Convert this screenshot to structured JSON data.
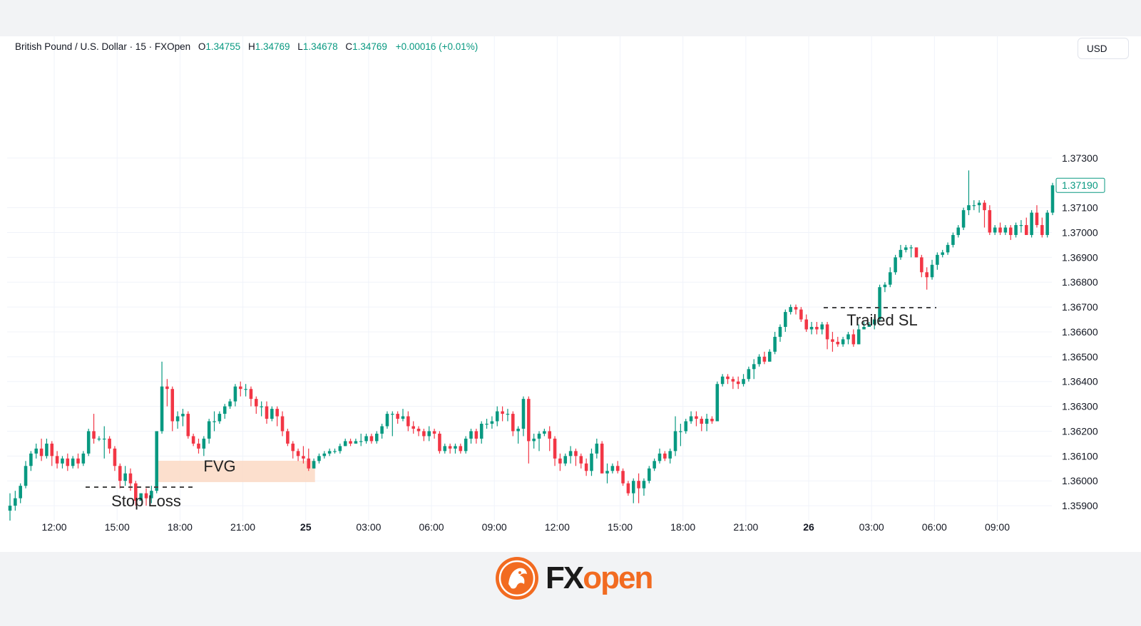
{
  "legend": {
    "symbol": "British Pound / U.S. Dollar · 15 · FXOpen",
    "open_label": "O",
    "open": "1.34755",
    "high_label": "H",
    "high": "1.34769",
    "low_label": "L",
    "low": "1.34678",
    "close_label": "C",
    "close": "1.34769",
    "change": "+0.00016 (+0.01%)"
  },
  "currency_button": "USD",
  "logo": {
    "fx": "FX",
    "open": "open"
  },
  "colors": {
    "up": "#089981",
    "down": "#f23645",
    "fvg": "#fcd9c4",
    "accent": "#f26b21"
  },
  "chart_data": {
    "type": "candlestick",
    "title": "British Pound / U.S. Dollar · 15 · FXOpen",
    "ylim": [
      1.3584,
      1.3779
    ],
    "y_ticks": [
      "1.37300",
      "1.37100",
      "1.37000",
      "1.36900",
      "1.36800",
      "1.36700",
      "1.36600",
      "1.36500",
      "1.36400",
      "1.36300",
      "1.36200",
      "1.36100",
      "1.36000",
      "1.35900"
    ],
    "x_ticks": [
      {
        "label": "12:00",
        "bold": false
      },
      {
        "label": "15:00",
        "bold": false
      },
      {
        "label": "18:00",
        "bold": false
      },
      {
        "label": "21:00",
        "bold": false
      },
      {
        "label": "25",
        "bold": true
      },
      {
        "label": "03:00",
        "bold": false
      },
      {
        "label": "06:00",
        "bold": false
      },
      {
        "label": "09:00",
        "bold": false
      },
      {
        "label": "12:00",
        "bold": false
      },
      {
        "label": "15:00",
        "bold": false
      },
      {
        "label": "18:00",
        "bold": false
      },
      {
        "label": "21:00",
        "bold": false
      },
      {
        "label": "26",
        "bold": true
      },
      {
        "label": "03:00",
        "bold": false
      },
      {
        "label": "06:00",
        "bold": false
      },
      {
        "label": "09:00",
        "bold": false
      }
    ],
    "last_price": "1.37190",
    "candles": [
      [
        1.3588,
        1.359,
        1.3584,
        1.3595
      ],
      [
        1.359,
        1.3593,
        1.3588,
        1.3596
      ],
      [
        1.3593,
        1.3598,
        1.3591,
        1.3599
      ],
      [
        1.3598,
        1.3606,
        1.3597,
        1.3608
      ],
      [
        1.3606,
        1.3611,
        1.3604,
        1.3612
      ],
      [
        1.3611,
        1.3613,
        1.3609,
        1.3615
      ],
      [
        1.3613,
        1.361,
        1.3608,
        1.3617
      ],
      [
        1.361,
        1.3615,
        1.3609,
        1.3617
      ],
      [
        1.3615,
        1.361,
        1.3606,
        1.3616
      ],
      [
        1.361,
        1.3607,
        1.3605,
        1.3612
      ],
      [
        1.3607,
        1.3609,
        1.3605,
        1.361
      ],
      [
        1.3609,
        1.3606,
        1.3604,
        1.3611
      ],
      [
        1.3606,
        1.3609,
        1.3605,
        1.361
      ],
      [
        1.3609,
        1.3607,
        1.3605,
        1.3611
      ],
      [
        1.3607,
        1.3611,
        1.3606,
        1.3612
      ],
      [
        1.3611,
        1.362,
        1.361,
        1.3621
      ],
      [
        1.362,
        1.3617,
        1.3615,
        1.3627
      ],
      [
        1.3617,
        1.3617,
        1.3616,
        1.3618
      ],
      [
        1.3617,
        1.3617,
        1.3609,
        1.3622
      ],
      [
        1.3617,
        1.3613,
        1.3611,
        1.3618
      ],
      [
        1.3613,
        1.3606,
        1.3604,
        1.3614
      ],
      [
        1.3606,
        1.36,
        1.3597,
        1.3607
      ],
      [
        1.36,
        1.3603,
        1.3598,
        1.3606
      ],
      [
        1.3603,
        1.3599,
        1.3596,
        1.3605
      ],
      [
        1.3599,
        1.3592,
        1.359,
        1.36
      ],
      [
        1.3592,
        1.3595,
        1.3592,
        1.3595
      ],
      [
        1.3595,
        1.3593,
        1.359,
        1.3597
      ],
      [
        1.3593,
        1.3596,
        1.3591,
        1.3598
      ],
      [
        1.3596,
        1.362,
        1.3595,
        1.362
      ],
      [
        1.362,
        1.3638,
        1.3619,
        1.3648
      ],
      [
        1.3638,
        1.3637,
        1.363,
        1.3641
      ],
      [
        1.3637,
        1.3624,
        1.362,
        1.3638
      ],
      [
        1.3624,
        1.3626,
        1.3621,
        1.3628
      ],
      [
        1.3626,
        1.3627,
        1.3622,
        1.3629
      ],
      [
        1.3627,
        1.3618,
        1.3617,
        1.3628
      ],
      [
        1.3618,
        1.3615,
        1.3614,
        1.3619
      ],
      [
        1.3615,
        1.3613,
        1.3611,
        1.3617
      ],
      [
        1.3613,
        1.3617,
        1.361,
        1.3618
      ],
      [
        1.3617,
        1.3624,
        1.3615,
        1.3625
      ],
      [
        1.3624,
        1.3624,
        1.362,
        1.3628
      ],
      [
        1.3624,
        1.3627,
        1.3623,
        1.3628
      ],
      [
        1.3627,
        1.363,
        1.3625,
        1.3631
      ],
      [
        1.363,
        1.3632,
        1.3629,
        1.3633
      ],
      [
        1.3632,
        1.3638,
        1.363,
        1.3639
      ],
      [
        1.3638,
        1.3637,
        1.3634,
        1.364
      ],
      [
        1.3637,
        1.3637,
        1.3634,
        1.3639
      ],
      [
        1.3637,
        1.3633,
        1.363,
        1.3638
      ],
      [
        1.3633,
        1.363,
        1.3627,
        1.3634
      ],
      [
        1.363,
        1.363,
        1.3626,
        1.3632
      ],
      [
        1.363,
        1.3625,
        1.3623,
        1.3632
      ],
      [
        1.3625,
        1.3629,
        1.3624,
        1.363
      ],
      [
        1.3629,
        1.3626,
        1.3622,
        1.363
      ],
      [
        1.3626,
        1.362,
        1.3618,
        1.3628
      ],
      [
        1.362,
        1.3615,
        1.3614,
        1.3621
      ],
      [
        1.3615,
        1.3612,
        1.3609,
        1.3616
      ],
      [
        1.3612,
        1.361,
        1.3608,
        1.3613
      ],
      [
        1.361,
        1.3609,
        1.3607,
        1.3614
      ],
      [
        1.3609,
        1.3605,
        1.3604,
        1.3613
      ],
      [
        1.3605,
        1.3608,
        1.3605,
        1.3609
      ],
      [
        1.3608,
        1.361,
        1.3607,
        1.3611
      ],
      [
        1.361,
        1.3611,
        1.3609,
        1.3612
      ],
      [
        1.3611,
        1.3612,
        1.361,
        1.3613
      ],
      [
        1.3612,
        1.3612,
        1.3611,
        1.3613
      ],
      [
        1.3612,
        1.3614,
        1.3611,
        1.3615
      ],
      [
        1.3614,
        1.3616,
        1.3614,
        1.3617
      ],
      [
        1.3616,
        1.3615,
        1.3614,
        1.3617
      ],
      [
        1.3615,
        1.3616,
        1.3615,
        1.3617
      ],
      [
        1.3616,
        1.3616,
        1.3614,
        1.3619
      ],
      [
        1.3616,
        1.3618,
        1.3615,
        1.3619
      ],
      [
        1.3618,
        1.3616,
        1.3615,
        1.3619
      ],
      [
        1.3616,
        1.3619,
        1.3615,
        1.362
      ],
      [
        1.3619,
        1.3622,
        1.3617,
        1.3623
      ],
      [
        1.3622,
        1.3627,
        1.3621,
        1.3628
      ],
      [
        1.3627,
        1.3627,
        1.3618,
        1.3628
      ],
      [
        1.3627,
        1.3625,
        1.3623,
        1.3628
      ],
      [
        1.3625,
        1.3626,
        1.3624,
        1.3629
      ],
      [
        1.3626,
        1.3622,
        1.362,
        1.3628
      ],
      [
        1.3622,
        1.3621,
        1.3619,
        1.3624
      ],
      [
        1.3621,
        1.362,
        1.3618,
        1.3622
      ],
      [
        1.362,
        1.3618,
        1.3616,
        1.3621
      ],
      [
        1.3618,
        1.362,
        1.3616,
        1.3622
      ],
      [
        1.362,
        1.3619,
        1.3617,
        1.3621
      ],
      [
        1.3619,
        1.3612,
        1.3611,
        1.362
      ],
      [
        1.3612,
        1.3614,
        1.3611,
        1.3615
      ],
      [
        1.3614,
        1.3613,
        1.3611,
        1.3615
      ],
      [
        1.3613,
        1.3614,
        1.3611,
        1.3615
      ],
      [
        1.3614,
        1.3612,
        1.3611,
        1.3615
      ],
      [
        1.3612,
        1.3617,
        1.3611,
        1.3618
      ],
      [
        1.3617,
        1.362,
        1.3615,
        1.3621
      ],
      [
        1.362,
        1.3617,
        1.3615,
        1.3621
      ],
      [
        1.3617,
        1.3623,
        1.3615,
        1.3624
      ],
      [
        1.3623,
        1.3623,
        1.3621,
        1.3625
      ],
      [
        1.3623,
        1.3624,
        1.3621,
        1.3626
      ],
      [
        1.3624,
        1.3628,
        1.3622,
        1.363
      ],
      [
        1.3628,
        1.3627,
        1.3624,
        1.363
      ],
      [
        1.3627,
        1.3627,
        1.3624,
        1.3629
      ],
      [
        1.3627,
        1.362,
        1.3618,
        1.3628
      ],
      [
        1.362,
        1.3621,
        1.3615,
        1.3622
      ],
      [
        1.3621,
        1.3633,
        1.3618,
        1.3634
      ],
      [
        1.3633,
        1.3616,
        1.3607,
        1.3634
      ],
      [
        1.3616,
        1.3617,
        1.3613,
        1.3619
      ],
      [
        1.3617,
        1.3619,
        1.3612,
        1.362
      ],
      [
        1.3619,
        1.362,
        1.3618,
        1.3621
      ],
      [
        1.362,
        1.3617,
        1.3612,
        1.3622
      ],
      [
        1.3617,
        1.3609,
        1.3606,
        1.3618
      ],
      [
        1.3609,
        1.3607,
        1.3604,
        1.3611
      ],
      [
        1.3607,
        1.361,
        1.3606,
        1.3611
      ],
      [
        1.361,
        1.3612,
        1.3607,
        1.3614
      ],
      [
        1.3612,
        1.361,
        1.3606,
        1.3613
      ],
      [
        1.361,
        1.3607,
        1.3605,
        1.3611
      ],
      [
        1.3607,
        1.3604,
        1.3602,
        1.3609
      ],
      [
        1.3604,
        1.3611,
        1.3602,
        1.3613
      ],
      [
        1.3611,
        1.3615,
        1.3609,
        1.3617
      ],
      [
        1.3615,
        1.3603,
        1.3603,
        1.3616
      ],
      [
        1.3603,
        1.3604,
        1.3599,
        1.3607
      ],
      [
        1.3604,
        1.3606,
        1.3603,
        1.3607
      ],
      [
        1.3606,
        1.3604,
        1.3603,
        1.3608
      ],
      [
        1.3604,
        1.3599,
        1.3598,
        1.3605
      ],
      [
        1.3599,
        1.3595,
        1.3594,
        1.36
      ],
      [
        1.3595,
        1.36,
        1.3591,
        1.3601
      ],
      [
        1.36,
        1.3597,
        1.3591,
        1.3603
      ],
      [
        1.3597,
        1.36,
        1.3594,
        1.3601
      ],
      [
        1.36,
        1.3605,
        1.3599,
        1.3606
      ],
      [
        1.3605,
        1.3608,
        1.3604,
        1.3609
      ],
      [
        1.3608,
        1.3611,
        1.3607,
        1.3613
      ],
      [
        1.3611,
        1.3609,
        1.3608,
        1.3612
      ],
      [
        1.3609,
        1.3612,
        1.3607,
        1.3613
      ],
      [
        1.3612,
        1.362,
        1.361,
        1.3626
      ],
      [
        1.362,
        1.362,
        1.3614,
        1.3623
      ],
      [
        1.362,
        1.3624,
        1.3619,
        1.3625
      ],
      [
        1.3624,
        1.3626,
        1.3623,
        1.3628
      ],
      [
        1.3626,
        1.3625,
        1.3622,
        1.3628
      ],
      [
        1.3625,
        1.3623,
        1.362,
        1.3626
      ],
      [
        1.3623,
        1.3625,
        1.362,
        1.3627
      ],
      [
        1.3625,
        1.3624,
        1.3623,
        1.3626
      ],
      [
        1.3624,
        1.3639,
        1.3624,
        1.364
      ],
      [
        1.3639,
        1.3642,
        1.3638,
        1.3643
      ],
      [
        1.3642,
        1.3641,
        1.3639,
        1.3643
      ],
      [
        1.3641,
        1.364,
        1.3637,
        1.3642
      ],
      [
        1.364,
        1.3639,
        1.3637,
        1.3642
      ],
      [
        1.3639,
        1.3641,
        1.3638,
        1.3643
      ],
      [
        1.3641,
        1.3645,
        1.364,
        1.3646
      ],
      [
        1.3645,
        1.3647,
        1.3641,
        1.3649
      ],
      [
        1.3647,
        1.365,
        1.3646,
        1.3651
      ],
      [
        1.365,
        1.3648,
        1.3647,
        1.3652
      ],
      [
        1.3648,
        1.3652,
        1.3648,
        1.3653
      ],
      [
        1.3652,
        1.3658,
        1.3651,
        1.366
      ],
      [
        1.3658,
        1.3662,
        1.3656,
        1.3663
      ],
      [
        1.3662,
        1.3668,
        1.366,
        1.3669
      ],
      [
        1.3668,
        1.367,
        1.3667,
        1.3671
      ],
      [
        1.367,
        1.3669,
        1.3667,
        1.3671
      ],
      [
        1.3669,
        1.3665,
        1.3664,
        1.367
      ],
      [
        1.3665,
        1.3661,
        1.366,
        1.3667
      ],
      [
        1.3661,
        1.3662,
        1.3659,
        1.3664
      ],
      [
        1.3662,
        1.3661,
        1.3659,
        1.3664
      ],
      [
        1.3661,
        1.3663,
        1.3659,
        1.3664
      ],
      [
        1.3663,
        1.3657,
        1.3653,
        1.3664
      ],
      [
        1.3657,
        1.3656,
        1.3652,
        1.366
      ],
      [
        1.3656,
        1.3655,
        1.3654,
        1.3658
      ],
      [
        1.3655,
        1.3657,
        1.3654,
        1.3658
      ],
      [
        1.3657,
        1.3659,
        1.3655,
        1.366
      ],
      [
        1.3659,
        1.3655,
        1.3654,
        1.3661
      ],
      [
        1.3655,
        1.3661,
        1.3655,
        1.3663
      ],
      [
        1.3661,
        1.3662,
        1.3661,
        1.3664
      ],
      [
        1.3662,
        1.3663,
        1.3662,
        1.3664
      ],
      [
        1.3663,
        1.3665,
        1.3661,
        1.3666
      ],
      [
        1.3665,
        1.3678,
        1.3664,
        1.3679
      ],
      [
        1.3678,
        1.3679,
        1.3676,
        1.368
      ],
      [
        1.3679,
        1.3684,
        1.3678,
        1.3686
      ],
      [
        1.3684,
        1.369,
        1.3683,
        1.3691
      ],
      [
        1.369,
        1.3693,
        1.3689,
        1.3695
      ],
      [
        1.3693,
        1.3694,
        1.3692,
        1.3695
      ],
      [
        1.3694,
        1.3694,
        1.369,
        1.3695
      ],
      [
        1.3694,
        1.369,
        1.369,
        1.3694
      ],
      [
        1.369,
        1.3684,
        1.3682,
        1.3691
      ],
      [
        1.3684,
        1.3682,
        1.3677,
        1.3686
      ],
      [
        1.3682,
        1.3687,
        1.3681,
        1.3689
      ],
      [
        1.3687,
        1.3691,
        1.3685,
        1.3692
      ],
      [
        1.3691,
        1.3692,
        1.369,
        1.3693
      ],
      [
        1.3692,
        1.3695,
        1.3691,
        1.3696
      ],
      [
        1.3695,
        1.3699,
        1.3694,
        1.37
      ],
      [
        1.3699,
        1.3702,
        1.3698,
        1.3703
      ],
      [
        1.3702,
        1.3709,
        1.3701,
        1.371
      ],
      [
        1.3709,
        1.3711,
        1.3707,
        1.3725
      ],
      [
        1.3711,
        1.3711,
        1.3709,
        1.3713
      ],
      [
        1.3711,
        1.3712,
        1.3708,
        1.3713
      ],
      [
        1.3712,
        1.3709,
        1.3702,
        1.3713
      ],
      [
        1.3709,
        1.37,
        1.3699,
        1.3711
      ],
      [
        1.37,
        1.3702,
        1.3699,
        1.3703
      ],
      [
        1.3702,
        1.37,
        1.3699,
        1.3704
      ],
      [
        1.37,
        1.3702,
        1.3699,
        1.3703
      ],
      [
        1.3702,
        1.3699,
        1.3697,
        1.3703
      ],
      [
        1.3699,
        1.3703,
        1.3698,
        1.3704
      ],
      [
        1.3703,
        1.3703,
        1.37,
        1.3705
      ],
      [
        1.3703,
        1.3699,
        1.3699,
        1.3706
      ],
      [
        1.3699,
        1.3708,
        1.3698,
        1.3709
      ],
      [
        1.3708,
        1.3703,
        1.3702,
        1.3711
      ],
      [
        1.3703,
        1.3699,
        1.3698,
        1.3706
      ],
      [
        1.3699,
        1.3708,
        1.3698,
        1.3709
      ],
      [
        1.3708,
        1.3719,
        1.3707,
        1.372
      ]
    ]
  },
  "annotations": {
    "fvg": "FVG",
    "stop_loss": "Stop Loss",
    "trailed_sl": "Trailed SL"
  }
}
